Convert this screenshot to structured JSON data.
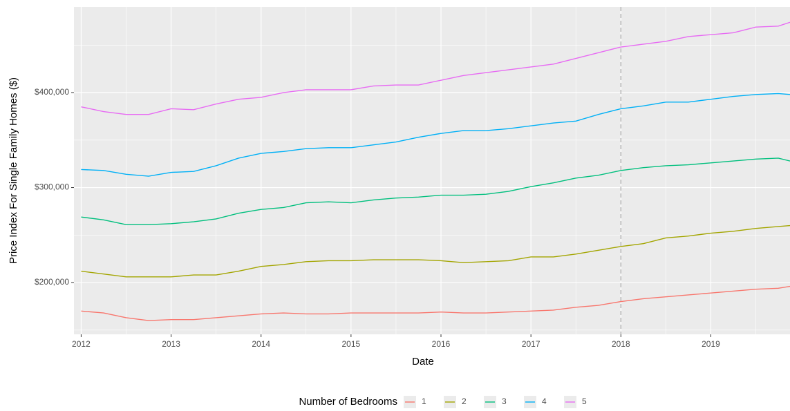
{
  "chart_data": {
    "type": "line",
    "x_label": "Date",
    "y_label": "Price Index For Single Family Homes ($)",
    "legend_title": "Number of Bedrooms",
    "legend_position": "bottom",
    "grid": true,
    "vline": 2018,
    "vline_color": "#bdbdbd",
    "xlim": [
      2011.92,
      2019.88
    ],
    "xticks": [
      2012,
      2013,
      2014,
      2015,
      2016,
      2017,
      2018,
      2019
    ],
    "ylim": [
      145500,
      490200
    ],
    "yticks": [
      {
        "value": 200000,
        "label": "$200,000"
      },
      {
        "value": 300000,
        "label": "$300,000"
      },
      {
        "value": 400000,
        "label": "$400,000"
      }
    ],
    "x": [
      2012,
      2012.25,
      2012.5,
      2012.75,
      2013,
      2013.25,
      2013.5,
      2013.75,
      2014,
      2014.25,
      2014.5,
      2014.75,
      2015,
      2015.25,
      2015.5,
      2015.75,
      2016,
      2016.25,
      2016.5,
      2016.75,
      2017,
      2017.25,
      2017.5,
      2017.75,
      2018,
      2018.25,
      2018.5,
      2018.75,
      2019,
      2019.25,
      2019.5,
      2019.75,
      2019.88
    ],
    "series": [
      {
        "name": "1",
        "color": "#F8766D",
        "values": [
          170000,
          168000,
          163000,
          160000,
          161000,
          161000,
          163000,
          165000,
          167000,
          168000,
          167000,
          167000,
          168000,
          168000,
          168000,
          168000,
          169000,
          168000,
          168000,
          169000,
          170000,
          171000,
          174000,
          176000,
          180000,
          183000,
          185000,
          187000,
          189000,
          191000,
          193000,
          194000,
          196000
        ]
      },
      {
        "name": "2",
        "color": "#A3A500",
        "values": [
          212000,
          209000,
          206000,
          206000,
          206000,
          208000,
          208000,
          212000,
          217000,
          219000,
          222000,
          223000,
          223000,
          224000,
          224000,
          224000,
          223000,
          221000,
          222000,
          223000,
          227000,
          227000,
          230000,
          234000,
          238000,
          241000,
          247000,
          249000,
          252000,
          254000,
          257000,
          259000,
          260000
        ]
      },
      {
        "name": "3",
        "color": "#00BF7D",
        "values": [
          269000,
          266000,
          261000,
          261000,
          262000,
          264000,
          267000,
          273000,
          277000,
          279000,
          284000,
          285000,
          284000,
          287000,
          289000,
          290000,
          292000,
          292000,
          293000,
          296000,
          301000,
          305000,
          310000,
          313000,
          318000,
          321000,
          323000,
          324000,
          326000,
          328000,
          330000,
          331000,
          328000
        ]
      },
      {
        "name": "4",
        "color": "#00B0F6",
        "values": [
          319000,
          318000,
          314000,
          312000,
          316000,
          317000,
          323000,
          331000,
          336000,
          338000,
          341000,
          342000,
          342000,
          345000,
          348000,
          353000,
          357000,
          360000,
          360000,
          362000,
          365000,
          368000,
          370000,
          377000,
          383000,
          386000,
          390000,
          390000,
          393000,
          396000,
          398000,
          399000,
          398000
        ]
      },
      {
        "name": "5",
        "color": "#E76BF3",
        "values": [
          385000,
          380000,
          377000,
          377000,
          383000,
          382000,
          388000,
          393000,
          395000,
          400000,
          403000,
          403000,
          403000,
          407000,
          408000,
          408000,
          413000,
          418000,
          421000,
          424000,
          427000,
          430000,
          436000,
          442000,
          448000,
          451000,
          454000,
          459000,
          461000,
          463000,
          469000,
          470000,
          474000
        ]
      }
    ]
  }
}
